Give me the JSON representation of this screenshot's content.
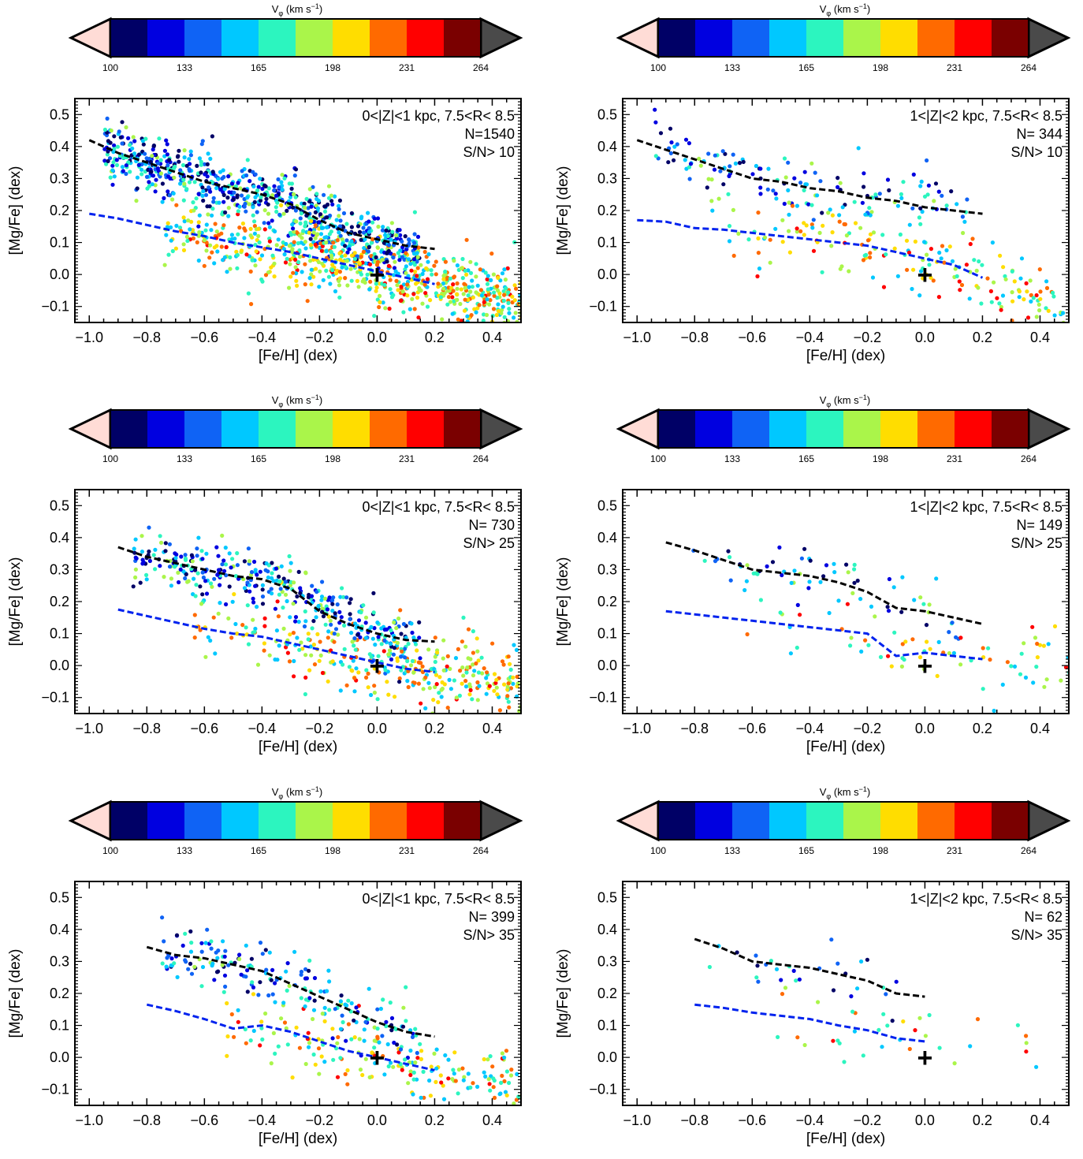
{
  "colorbar": {
    "label": "V",
    "label_sub": "φ",
    "label_units": "(km s",
    "label_exp": "−1",
    "label_close": ")",
    "ticks": [
      "100",
      "133",
      "165",
      "198",
      "231",
      "264"
    ],
    "colors": [
      "#000066",
      "#0000e0",
      "#0f63f5",
      "#00c8ff",
      "#2cf5bf",
      "#aaf54a",
      "#ffdd00",
      "#ff6a00",
      "#ff0000",
      "#7a0000"
    ],
    "under_color": "#ffdcd6",
    "over_color": "#4a4a4a"
  },
  "axes": {
    "xlabel": "[Fe/H] (dex)",
    "ylabel": "[Mg/Fe] (dex)",
    "xlim": [
      -1.05,
      0.5
    ],
    "ylim": [
      -0.15,
      0.55
    ],
    "xticks": [
      "−1.0",
      "−0.8",
      "−0.6",
      "−0.4",
      "−0.2",
      "0.0",
      "0.2",
      "0.4"
    ],
    "yticks": [
      "−0.1",
      "0.0",
      "0.1",
      "0.2",
      "0.3",
      "0.4",
      "0.5"
    ]
  },
  "chart_data": [
    {
      "type": "scatter",
      "annotation": [
        "0<|Z|<1 kpc, 7.5<R< 8.5",
        "N=1540",
        "S/N> 10"
      ],
      "n_stars": 1540,
      "color_variable": "V_phi (km s^-1)",
      "color_range": [
        100,
        264
      ],
      "marker": {
        "label": "+",
        "x": 0.0,
        "y": 0.0
      },
      "series": [
        {
          "color": "#000000",
          "x": [
            -1.0,
            -0.9,
            -0.8,
            -0.7,
            -0.6,
            -0.5,
            -0.4,
            -0.3,
            -0.2,
            -0.1,
            0.0,
            0.1,
            0.2
          ],
          "y": [
            0.42,
            0.38,
            0.35,
            0.32,
            0.29,
            0.27,
            0.25,
            0.22,
            0.17,
            0.13,
            0.11,
            0.09,
            0.08
          ]
        },
        {
          "color": "#0022ee",
          "x": [
            -1.0,
            -0.9,
            -0.8,
            -0.7,
            -0.6,
            -0.5,
            -0.4,
            -0.3,
            -0.2,
            -0.1,
            0.0,
            0.1,
            0.2
          ],
          "y": [
            0.19,
            0.175,
            0.155,
            0.135,
            0.12,
            0.1,
            0.085,
            0.07,
            0.05,
            0.03,
            0.01,
            -0.01,
            -0.03
          ]
        }
      ]
    },
    {
      "type": "scatter",
      "annotation": [
        "1<|Z|<2 kpc, 7.5<R< 8.5",
        "N= 344",
        "S/N> 10"
      ],
      "n_stars": 344,
      "color_variable": "V_phi (km s^-1)",
      "color_range": [
        100,
        264
      ],
      "marker": {
        "label": "+",
        "x": 0.0,
        "y": 0.0
      },
      "series": [
        {
          "color": "#000000",
          "x": [
            -1.0,
            -0.9,
            -0.8,
            -0.7,
            -0.6,
            -0.5,
            -0.4,
            -0.3,
            -0.2,
            -0.1,
            0.0,
            0.1,
            0.2
          ],
          "y": [
            0.42,
            0.39,
            0.36,
            0.33,
            0.3,
            0.29,
            0.27,
            0.26,
            0.24,
            0.23,
            0.21,
            0.2,
            0.19
          ]
        },
        {
          "color": "#0022ee",
          "x": [
            -1.0,
            -0.9,
            -0.8,
            -0.7,
            -0.6,
            -0.5,
            -0.4,
            -0.3,
            -0.2,
            -0.1,
            0.0,
            0.1,
            0.2
          ],
          "y": [
            0.17,
            0.165,
            0.145,
            0.14,
            0.13,
            0.12,
            0.11,
            0.1,
            0.09,
            0.07,
            0.05,
            0.03,
            -0.01
          ]
        }
      ]
    },
    {
      "type": "scatter",
      "annotation": [
        "0<|Z|<1 kpc, 7.5<R< 8.5",
        "N= 730",
        "S/N> 25"
      ],
      "n_stars": 730,
      "color_variable": "V_phi (km s^-1)",
      "color_range": [
        100,
        264
      ],
      "marker": {
        "label": "+",
        "x": 0.0,
        "y": 0.0
      },
      "series": [
        {
          "color": "#000000",
          "x": [
            -0.9,
            -0.8,
            -0.7,
            -0.6,
            -0.5,
            -0.4,
            -0.3,
            -0.2,
            -0.1,
            0.0,
            0.1,
            0.2
          ],
          "y": [
            0.37,
            0.34,
            0.32,
            0.3,
            0.28,
            0.27,
            0.24,
            0.17,
            0.13,
            0.1,
            0.08,
            0.075
          ]
        },
        {
          "color": "#0022ee",
          "x": [
            -0.9,
            -0.8,
            -0.7,
            -0.6,
            -0.5,
            -0.4,
            -0.3,
            -0.2,
            -0.1,
            0.0,
            0.1,
            0.2
          ],
          "y": [
            0.175,
            0.155,
            0.135,
            0.115,
            0.1,
            0.09,
            0.07,
            0.05,
            0.03,
            0.01,
            -0.01,
            -0.02
          ]
        }
      ]
    },
    {
      "type": "scatter",
      "annotation": [
        "1<|Z|<2 kpc, 7.5<R< 8.5",
        "N= 149",
        "S/N> 25"
      ],
      "n_stars": 149,
      "color_variable": "V_phi (km s^-1)",
      "color_range": [
        100,
        264
      ],
      "marker": {
        "label": "+",
        "x": 0.0,
        "y": 0.0
      },
      "series": [
        {
          "color": "#000000",
          "x": [
            -0.9,
            -0.8,
            -0.7,
            -0.6,
            -0.5,
            -0.4,
            -0.3,
            -0.2,
            -0.1,
            0.0,
            0.1,
            0.2
          ],
          "y": [
            0.385,
            0.36,
            0.33,
            0.3,
            0.29,
            0.28,
            0.26,
            0.23,
            0.18,
            0.17,
            0.15,
            0.13
          ]
        },
        {
          "color": "#0022ee",
          "x": [
            -0.9,
            -0.8,
            -0.7,
            -0.6,
            -0.5,
            -0.4,
            -0.3,
            -0.2,
            -0.1,
            0.0,
            0.1,
            0.2
          ],
          "y": [
            0.17,
            0.16,
            0.15,
            0.14,
            0.13,
            0.12,
            0.11,
            0.1,
            0.03,
            0.04,
            0.03,
            0.02
          ]
        }
      ]
    },
    {
      "type": "scatter",
      "annotation": [
        "0<|Z|<1 kpc, 7.5<R< 8.5",
        "N= 399",
        "S/N> 35"
      ],
      "n_stars": 399,
      "color_variable": "V_phi (km s^-1)",
      "color_range": [
        100,
        264
      ],
      "marker": {
        "label": "+",
        "x": 0.0,
        "y": 0.0
      },
      "series": [
        {
          "color": "#000000",
          "x": [
            -0.8,
            -0.7,
            -0.6,
            -0.5,
            -0.4,
            -0.3,
            -0.2,
            -0.1,
            0.0,
            0.1,
            0.2
          ],
          "y": [
            0.345,
            0.32,
            0.31,
            0.29,
            0.27,
            0.23,
            0.19,
            0.15,
            0.11,
            0.08,
            0.065
          ]
        },
        {
          "color": "#0022ee",
          "x": [
            -0.8,
            -0.7,
            -0.6,
            -0.5,
            -0.4,
            -0.3,
            -0.2,
            -0.1,
            0.0,
            0.1,
            0.2
          ],
          "y": [
            0.165,
            0.145,
            0.12,
            0.09,
            0.1,
            0.08,
            0.05,
            0.02,
            0.0,
            -0.02,
            -0.04
          ]
        }
      ]
    },
    {
      "type": "scatter",
      "annotation": [
        "1<|Z|<2 kpc, 7.5<R< 8.5",
        "N=  62",
        "S/N> 35"
      ],
      "n_stars": 62,
      "color_variable": "V_phi (km s^-1)",
      "color_range": [
        100,
        264
      ],
      "marker": {
        "label": "+",
        "x": 0.0,
        "y": 0.0
      },
      "series": [
        {
          "color": "#000000",
          "x": [
            -0.8,
            -0.7,
            -0.6,
            -0.5,
            -0.4,
            -0.3,
            -0.2,
            -0.1,
            0.0
          ],
          "y": [
            0.37,
            0.34,
            0.3,
            0.29,
            0.28,
            0.26,
            0.24,
            0.2,
            0.19
          ]
        },
        {
          "color": "#0022ee",
          "x": [
            -0.8,
            -0.7,
            -0.6,
            -0.5,
            -0.4,
            -0.3,
            -0.2,
            -0.1,
            0.0
          ],
          "y": [
            0.165,
            0.155,
            0.14,
            0.13,
            0.12,
            0.1,
            0.085,
            0.06,
            0.05
          ]
        }
      ]
    }
  ]
}
